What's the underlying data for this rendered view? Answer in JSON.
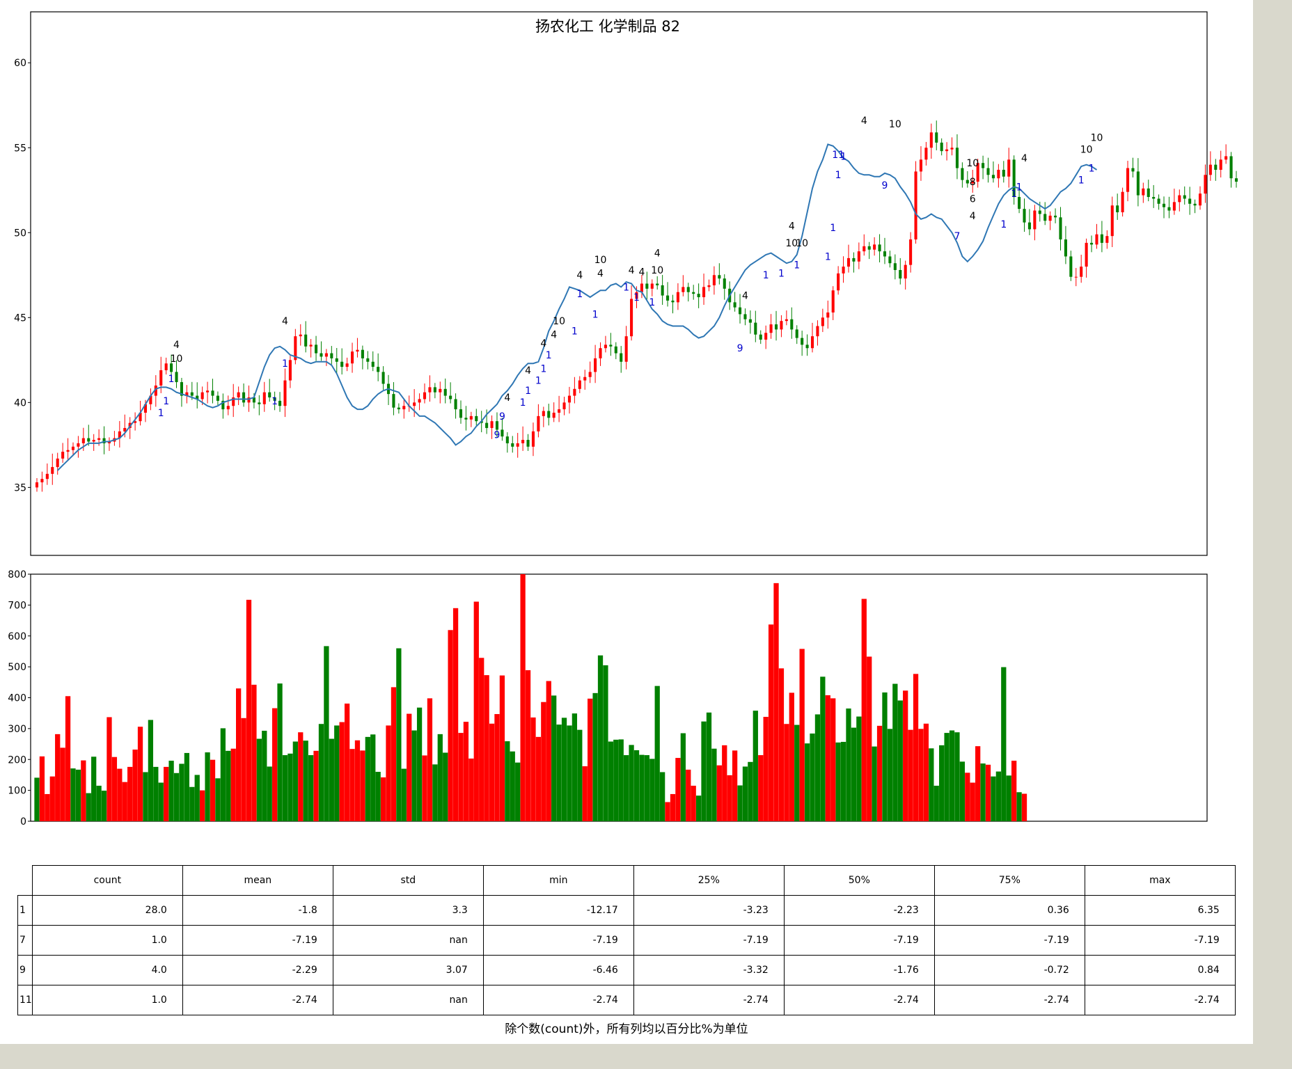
{
  "chart_data": [
    {
      "type": "candlestick",
      "title": "扬农化工 化学制品 82",
      "ylim": [
        31,
        63
      ],
      "yticks": [
        35,
        40,
        45,
        50,
        55,
        60
      ],
      "series": [
        {
          "name": "",
          "kind": "candles"
        },
        {
          "name": "",
          "kind": "line"
        }
      ],
      "colors": {
        "up": "#ff0000",
        "down": "#008000",
        "ma": "#2f77b4",
        "marker_blue": "#0000cc",
        "marker_black": "#000000"
      },
      "closes": [
        35.3,
        35.5,
        35.8,
        36.2,
        36.7,
        37.1,
        37.2,
        37.4,
        37.6,
        37.9,
        37.7,
        37.8,
        37.9,
        37.6,
        37.7,
        37.9,
        38.3,
        38.5,
        38.8,
        38.9,
        39.4,
        39.9,
        40.4,
        41.0,
        41.9,
        42.3,
        41.8,
        41.2,
        40.4,
        40.6,
        40.4,
        40.2,
        40.6,
        40.7,
        40.4,
        40.1,
        39.6,
        39.8,
        40.3,
        40.6,
        40.0,
        40.3,
        40.0,
        39.9,
        40.6,
        40.3,
        40.1,
        39.8,
        41.3,
        42.5,
        43.9,
        44.0,
        43.3,
        43.4,
        42.9,
        42.7,
        42.9,
        42.6,
        42.4,
        42.1,
        42.3,
        43.0,
        43.1,
        42.6,
        42.4,
        42.1,
        41.8,
        41.1,
        40.5,
        39.7,
        39.6,
        39.8,
        39.8,
        40.0,
        40.2,
        40.6,
        40.9,
        40.6,
        40.8,
        40.4,
        40.2,
        39.6,
        39.1,
        39.0,
        39.2,
        38.9,
        38.8,
        38.5,
        38.9,
        38.4,
        38.0,
        37.6,
        37.4,
        37.6,
        37.8,
        37.4,
        38.3,
        39.2,
        39.5,
        39.1,
        39.4,
        39.6,
        40.0,
        40.4,
        40.8,
        41.3,
        41.5,
        41.8,
        42.6,
        43.2,
        43.4,
        43.3,
        42.9,
        42.4,
        43.9,
        46.1,
        46.5,
        47.0,
        46.7,
        47.0,
        46.9,
        46.3,
        46.0,
        45.9,
        46.5,
        46.8,
        46.5,
        46.4,
        46.2,
        46.8,
        46.9,
        47.5,
        47.3,
        46.7,
        45.9,
        45.6,
        45.2,
        44.9,
        44.7,
        44.0,
        43.7,
        44.1,
        44.6,
        44.3,
        44.8,
        44.9,
        44.3,
        43.8,
        43.4,
        43.2,
        43.9,
        44.5,
        45.0,
        45.3,
        46.6,
        47.6,
        48.0,
        48.5,
        48.3,
        48.9,
        49.2,
        49.0,
        49.3,
        48.9,
        48.6,
        48.2,
        47.8,
        47.3,
        48.1,
        49.6,
        53.6,
        54.3,
        55.0,
        55.9,
        55.3,
        54.8,
        54.9,
        55.0,
        53.8,
        53.1,
        52.9,
        53.0,
        54.1,
        53.8,
        53.4,
        53.2,
        53.7,
        53.3,
        54.3,
        52.1,
        51.4,
        50.6,
        50.2,
        51.3,
        51.1,
        50.7,
        51.0,
        50.9,
        49.6,
        48.6,
        47.4,
        47.4,
        48.0,
        49.4,
        49.3,
        49.9,
        49.4,
        49.8,
        51.6,
        51.2,
        52.4,
        53.8,
        53.6,
        52.2,
        52.6,
        52.1,
        52.0,
        51.7,
        51.5,
        51.3,
        51.8,
        52.2,
        52.0,
        51.7,
        51.6,
        52.3,
        53.4,
        54.0,
        53.7,
        54.3,
        54.5,
        53.2,
        53.0
      ],
      "ma_start_index": 4,
      "ma": [
        36.0,
        36.3,
        36.6,
        36.9,
        37.2,
        37.4,
        37.6,
        37.6,
        37.6,
        37.7,
        37.7,
        37.8,
        37.9,
        38.2,
        38.6,
        39.0,
        39.4,
        39.9,
        40.4,
        40.8,
        40.9,
        40.9,
        40.8,
        40.6,
        40.5,
        40.4,
        40.3,
        40.2,
        40.0,
        39.8,
        39.7,
        39.8,
        40.0,
        40.1,
        40.2,
        40.2,
        40.2,
        40.2,
        40.3,
        41.2,
        42.1,
        42.8,
        43.2,
        43.3,
        43.1,
        42.8,
        42.7,
        42.6,
        42.4,
        42.3,
        42.4,
        42.4,
        42.4,
        42.2,
        41.7,
        41.0,
        40.3,
        39.8,
        39.6,
        39.6,
        39.8,
        40.2,
        40.5,
        40.7,
        40.8,
        40.7,
        40.6,
        40.2,
        39.8,
        39.5,
        39.2,
        39.2,
        39.0,
        38.8,
        38.5,
        38.2,
        37.9,
        37.5,
        37.7,
        38.0,
        38.2,
        38.6,
        38.9,
        39.3,
        39.6,
        39.9,
        40.4,
        40.7,
        41.1,
        41.6,
        42.0,
        42.3,
        42.3,
        42.4,
        43.2,
        44.2,
        44.8,
        45.5,
        46.1,
        46.8,
        46.7,
        46.6,
        46.4,
        46.2,
        46.4,
        46.6,
        46.6,
        46.9,
        47.0,
        46.8,
        47.1,
        47.0,
        46.6,
        46.5,
        46.0,
        45.5,
        45.2,
        44.8,
        44.6,
        44.5,
        44.5,
        44.5,
        44.3,
        44.0,
        43.8,
        43.9,
        44.2,
        44.5,
        45.0,
        45.7,
        46.3,
        46.8,
        47.3,
        47.8,
        48.1,
        48.3,
        48.5,
        48.7,
        48.8,
        48.6,
        48.4,
        48.2,
        48.3,
        48.7,
        49.8,
        51.2,
        52.6,
        53.6,
        54.3,
        55.2,
        55.1,
        54.8,
        54.4,
        54.2,
        53.8,
        53.5,
        53.4,
        53.4,
        53.3,
        53.3,
        53.5,
        53.4,
        53.2,
        52.7,
        52.3,
        51.8,
        51.1,
        50.8,
        50.9,
        51.1,
        50.9,
        50.8,
        50.4,
        50.0,
        49.4,
        48.6,
        48.3,
        48.6,
        49.0,
        49.5,
        50.3,
        51.0,
        51.7,
        52.2,
        52.5,
        52.7,
        52.6,
        52.3,
        52.0,
        51.8,
        51.6,
        51.4,
        51.6,
        52.0,
        52.4,
        52.6,
        52.9,
        53.4,
        53.9,
        54.0,
        53.9,
        53.7
      ],
      "markers": [
        {
          "day": 24,
          "price": 39.2,
          "text": "1",
          "color": "blue"
        },
        {
          "day": 25,
          "price": 39.9,
          "text": "1",
          "color": "blue"
        },
        {
          "day": 26,
          "price": 41.2,
          "text": "1",
          "color": "blue"
        },
        {
          "day": 27,
          "price": 42.4,
          "text": "10",
          "color": "black"
        },
        {
          "day": 27,
          "price": 43.2,
          "text": "4",
          "color": "black"
        },
        {
          "day": 46,
          "price": 39.9,
          "text": "1",
          "color": "blue"
        },
        {
          "day": 48,
          "price": 42.1,
          "text": "1",
          "color": "blue"
        },
        {
          "day": 48,
          "price": 44.6,
          "text": "4",
          "color": "black"
        },
        {
          "day": 89,
          "price": 37.9,
          "text": "9",
          "color": "blue"
        },
        {
          "day": 90,
          "price": 39.0,
          "text": "9",
          "color": "blue"
        },
        {
          "day": 91,
          "price": 40.1,
          "text": "4",
          "color": "black"
        },
        {
          "day": 94,
          "price": 39.8,
          "text": "1",
          "color": "blue"
        },
        {
          "day": 95,
          "price": 40.5,
          "text": "1",
          "color": "blue"
        },
        {
          "day": 95,
          "price": 41.7,
          "text": "4",
          "color": "black"
        },
        {
          "day": 97,
          "price": 41.1,
          "text": "1",
          "color": "blue"
        },
        {
          "day": 98,
          "price": 41.8,
          "text": "1",
          "color": "blue"
        },
        {
          "day": 99,
          "price": 42.6,
          "text": "1",
          "color": "blue"
        },
        {
          "day": 98,
          "price": 43.3,
          "text": "4",
          "color": "black"
        },
        {
          "day": 100,
          "price": 43.8,
          "text": "4",
          "color": "black"
        },
        {
          "day": 101,
          "price": 44.6,
          "text": "10",
          "color": "black"
        },
        {
          "day": 104,
          "price": 44.0,
          "text": "1",
          "color": "blue"
        },
        {
          "day": 105,
          "price": 46.2,
          "text": "1",
          "color": "blue"
        },
        {
          "day": 105,
          "price": 47.3,
          "text": "4",
          "color": "black"
        },
        {
          "day": 108,
          "price": 45.0,
          "text": "1",
          "color": "blue"
        },
        {
          "day": 109,
          "price": 47.4,
          "text": "4",
          "color": "black"
        },
        {
          "day": 109,
          "price": 48.2,
          "text": "10",
          "color": "black"
        },
        {
          "day": 114,
          "price": 46.6,
          "text": "1",
          "color": "blue"
        },
        {
          "day": 115,
          "price": 47.6,
          "text": "4",
          "color": "black"
        },
        {
          "day": 116,
          "price": 46.0,
          "text": "1",
          "color": "blue"
        },
        {
          "day": 117,
          "price": 47.5,
          "text": "4",
          "color": "black"
        },
        {
          "day": 119,
          "price": 45.7,
          "text": "1",
          "color": "blue"
        },
        {
          "day": 120,
          "price": 47.6,
          "text": "10",
          "color": "black"
        },
        {
          "day": 120,
          "price": 48.6,
          "text": "4",
          "color": "black"
        },
        {
          "day": 136,
          "price": 43.0,
          "text": "9",
          "color": "blue"
        },
        {
          "day": 137,
          "price": 46.1,
          "text": "4",
          "color": "black"
        },
        {
          "day": 141,
          "price": 47.3,
          "text": "1",
          "color": "blue"
        },
        {
          "day": 144,
          "price": 47.4,
          "text": "1",
          "color": "blue"
        },
        {
          "day": 146,
          "price": 49.2,
          "text": "10",
          "color": "black"
        },
        {
          "day": 146,
          "price": 50.2,
          "text": "4",
          "color": "black"
        },
        {
          "day": 147,
          "price": 47.9,
          "text": "1",
          "color": "blue"
        },
        {
          "day": 148,
          "price": 49.2,
          "text": "10",
          "color": "black"
        },
        {
          "day": 153,
          "price": 48.4,
          "text": "1",
          "color": "blue"
        },
        {
          "day": 154,
          "price": 50.1,
          "text": "1",
          "color": "blue"
        },
        {
          "day": 155,
          "price": 53.2,
          "text": "1",
          "color": "blue"
        },
        {
          "day": 155,
          "price": 54.4,
          "text": "11",
          "color": "blue"
        },
        {
          "day": 156,
          "price": 54.3,
          "text": "1",
          "color": "blue"
        },
        {
          "day": 160,
          "price": 56.4,
          "text": "4",
          "color": "black"
        },
        {
          "day": 164,
          "price": 52.6,
          "text": "9",
          "color": "blue"
        },
        {
          "day": 166,
          "price": 56.2,
          "text": "10",
          "color": "black"
        },
        {
          "day": 178,
          "price": 49.6,
          "text": "7",
          "color": "blue"
        },
        {
          "day": 181,
          "price": 50.8,
          "text": "4",
          "color": "black"
        },
        {
          "day": 181,
          "price": 51.8,
          "text": "6",
          "color": "black"
        },
        {
          "day": 181,
          "price": 52.8,
          "text": "8",
          "color": "black"
        },
        {
          "day": 181,
          "price": 53.9,
          "text": "10",
          "color": "black"
        },
        {
          "day": 187,
          "price": 50.3,
          "text": "1",
          "color": "blue"
        },
        {
          "day": 189,
          "price": 52.1,
          "text": "1",
          "color": "blue"
        },
        {
          "day": 190,
          "price": 52.5,
          "text": "1",
          "color": "blue"
        },
        {
          "day": 191,
          "price": 54.2,
          "text": "4",
          "color": "black"
        },
        {
          "day": 202,
          "price": 52.9,
          "text": "1",
          "color": "blue"
        },
        {
          "day": 204,
          "price": 53.6,
          "text": "1",
          "color": "blue"
        },
        {
          "day": 203,
          "price": 54.7,
          "text": "10",
          "color": "black"
        },
        {
          "day": 205,
          "price": 55.4,
          "text": "10",
          "color": "black"
        }
      ]
    },
    {
      "type": "bar",
      "ylim": [
        0,
        800
      ],
      "yticks": [
        0,
        100,
        200,
        300,
        400,
        500,
        600,
        700,
        800
      ],
      "colors": {
        "up": "#ff0000",
        "down": "#008000"
      },
      "volumes": [
        141,
        210,
        88,
        145,
        282,
        238,
        405,
        171,
        167,
        197,
        91,
        209,
        115,
        99,
        337,
        208,
        170,
        127,
        176,
        232,
        306,
        159,
        328,
        176,
        125,
        176,
        196,
        156,
        186,
        221,
        111,
        150,
        100,
        223,
        199,
        139,
        301,
        228,
        235,
        430,
        334,
        717,
        442,
        267,
        293,
        177,
        366,
        446,
        214,
        219,
        258,
        288,
        261,
        214,
        228,
        315,
        567,
        267,
        310,
        321,
        381,
        234,
        262,
        229,
        273,
        281,
        160,
        142,
        310,
        434,
        560,
        170,
        348,
        294,
        368,
        213,
        398,
        184,
        282,
        222,
        619,
        690,
        286,
        322,
        203,
        711,
        529,
        473,
        316,
        347,
        472,
        259,
        226,
        190,
        889,
        489,
        336,
        273,
        386,
        454,
        407,
        313,
        335,
        310,
        349,
        296,
        178,
        397,
        415,
        537,
        505,
        258,
        264,
        265,
        214,
        247,
        230,
        215,
        214,
        202,
        438,
        159,
        62,
        88,
        205,
        285,
        167,
        115,
        83,
        323,
        352,
        235,
        181,
        246,
        149,
        229,
        116,
        177,
        192,
        358,
        214,
        338,
        637,
        771,
        495,
        315,
        416,
        312,
        558,
        252,
        284,
        346,
        468,
        408,
        398,
        255,
        257,
        365,
        303,
        339,
        720,
        533,
        242,
        309,
        417,
        299,
        445,
        391,
        423,
        296,
        477,
        299,
        316,
        236,
        115,
        246,
        286,
        294,
        288,
        193,
        157,
        125,
        243,
        187,
        183,
        145,
        161,
        499,
        148,
        196,
        94,
        89
      ],
      "directions": "DUUUUUUDDUDDDDUUUUUUUDDDDUDDDDDDUDUDDDUUUUUDDDUDDDDUDDUDDDDUUUUUDDDUUUDDUDDUUDDDUUUUUUUUUUUDDDUUUUUUDDDDDDUUDDDDDDDDDDDDDDUUUDUUDDDDUUUUDDDDUUUUUUUDUDDDDUUDDDDDUUDUDDDDUUUUUDDDDDDDUUUDUDDDDUDUUUUDDDUUDDDDDUUUUUDUUD"
    },
    {
      "type": "table",
      "columns": [
        "count",
        "mean",
        "std",
        "min",
        "25%",
        "50%",
        "75%",
        "max"
      ],
      "rows": [
        {
          "label": "1",
          "values": [
            "28.0",
            "-1.8",
            "3.3",
            "-12.17",
            "-3.23",
            "-2.23",
            "0.36",
            "6.35"
          ]
        },
        {
          "label": "7",
          "values": [
            "1.0",
            "-7.19",
            "nan",
            "-7.19",
            "-7.19",
            "-7.19",
            "-7.19",
            "-7.19"
          ]
        },
        {
          "label": "9",
          "values": [
            "4.0",
            "-2.29",
            "3.07",
            "-6.46",
            "-3.32",
            "-1.76",
            "-0.72",
            "0.84"
          ]
        },
        {
          "label": "11",
          "values": [
            "1.0",
            "-2.74",
            "nan",
            "-2.74",
            "-2.74",
            "-2.74",
            "-2.74",
            "-2.74"
          ]
        }
      ]
    }
  ],
  "caption": "除个数(count)外，所有列均以百分比%为单位"
}
